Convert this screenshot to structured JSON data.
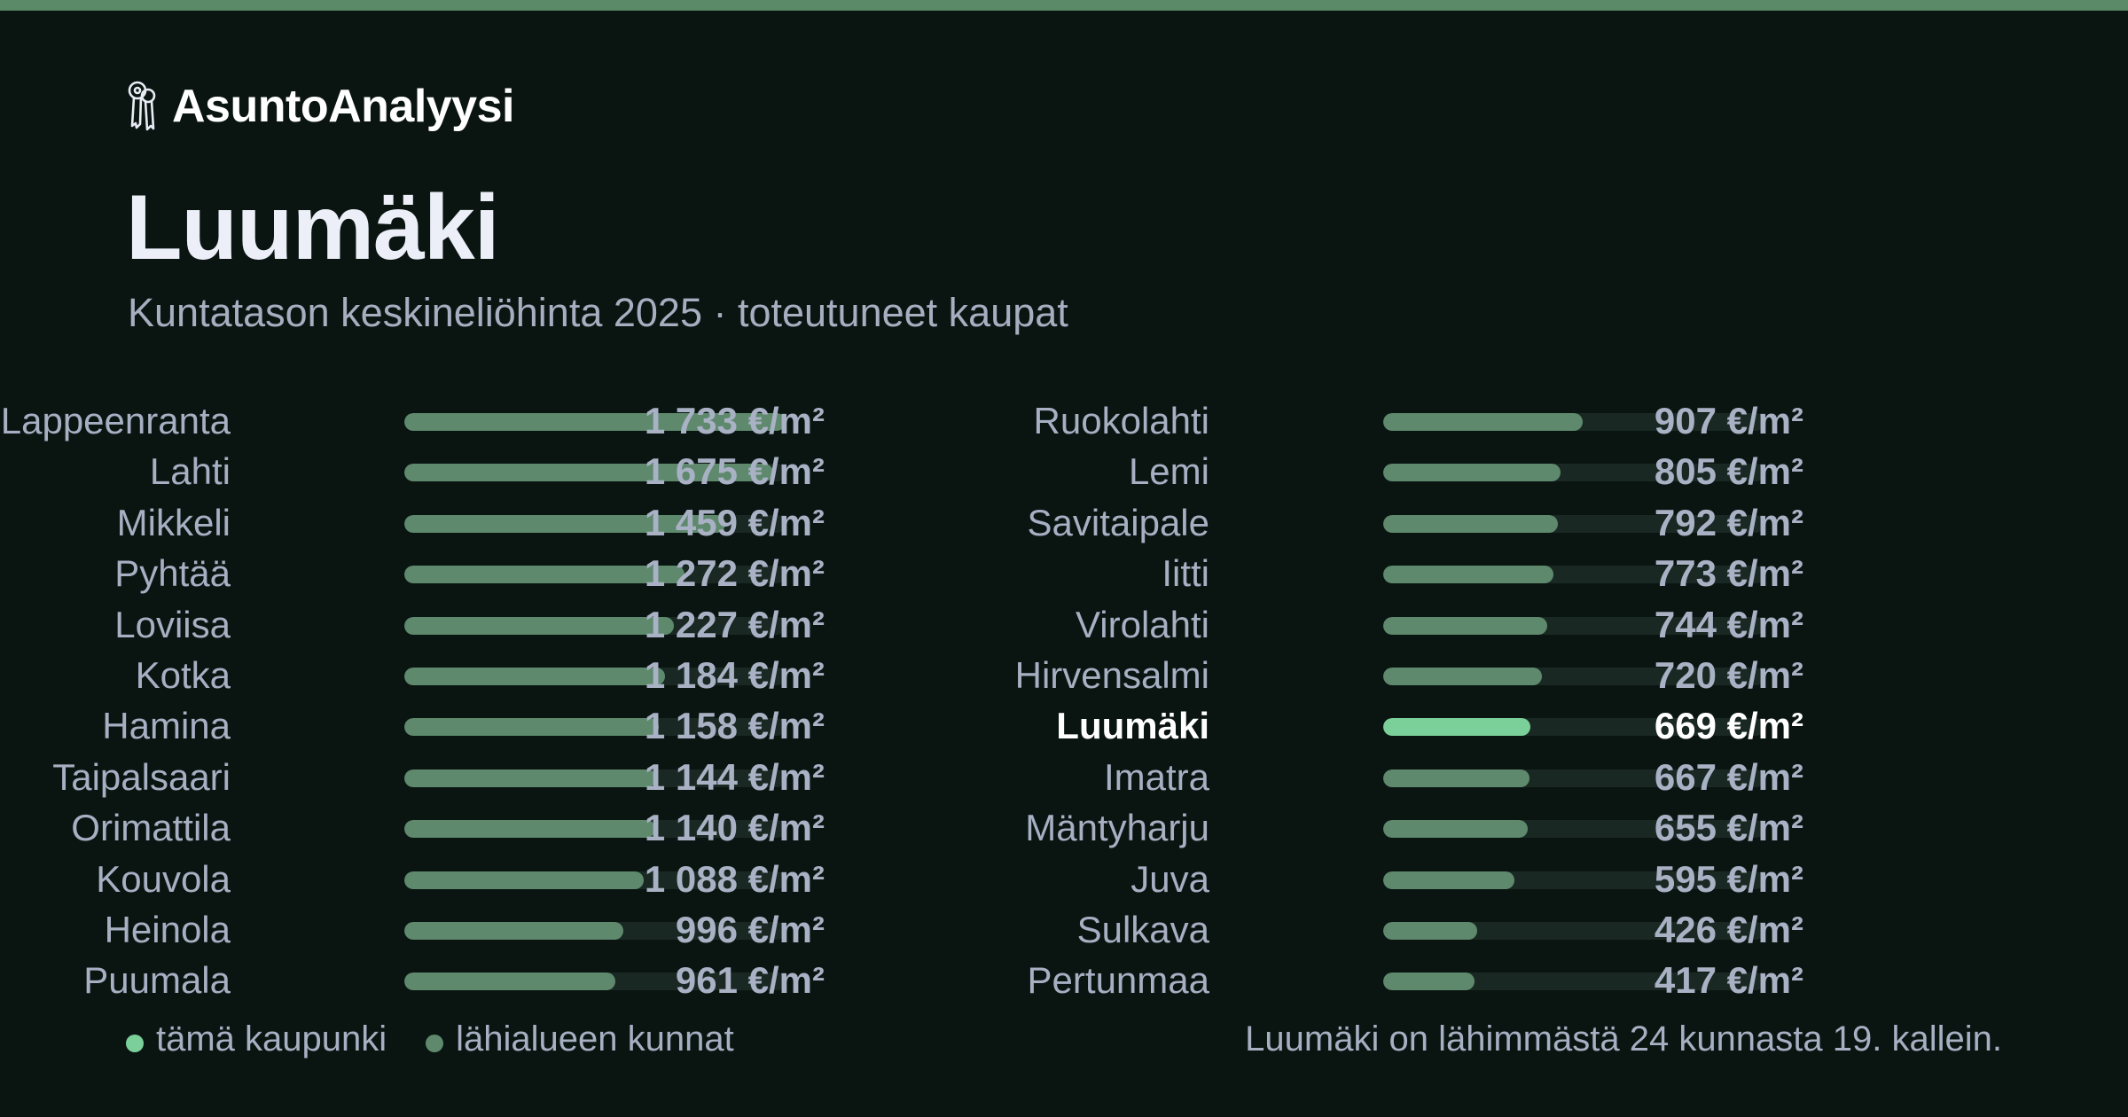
{
  "brand": {
    "name": "AsuntoAnalyysi",
    "icon": "keys-icon"
  },
  "title": "Luumäki",
  "subtitle": "Kuntatason keskineliöhinta 2025 · toteutuneet kaupat",
  "legend": {
    "this_city": "tämä kaupunki",
    "nearby": "lähialueen kunnat"
  },
  "footnote": "Luumäki on lähimmästä 24 kunnasta 19. kallein.",
  "colors": {
    "background": "#0a1512",
    "accent": "#5b8a68",
    "bar_default": "#5e896d",
    "bar_highlight": "#7bd09a",
    "track": "#1a2823"
  },
  "chart_data": {
    "type": "bar",
    "orientation": "horizontal",
    "unit": "€/m²",
    "xlim": [
      0,
      1733
    ],
    "highlight": "Luumäki",
    "legend_position": "bottom-left",
    "categories": [
      "Lappeenranta",
      "Lahti",
      "Mikkeli",
      "Pyhtää",
      "Loviisa",
      "Kotka",
      "Hamina",
      "Taipalsaari",
      "Orimattila",
      "Kouvola",
      "Heinola",
      "Puumala",
      "Ruokolahti",
      "Lemi",
      "Savitaipale",
      "Iitti",
      "Virolahti",
      "Hirvensalmi",
      "Luumäki",
      "Imatra",
      "Mäntyharju",
      "Juva",
      "Sulkava",
      "Pertunmaa"
    ],
    "values": [
      1733,
      1675,
      1459,
      1272,
      1227,
      1184,
      1158,
      1144,
      1140,
      1088,
      996,
      961,
      907,
      805,
      792,
      773,
      744,
      720,
      669,
      667,
      655,
      595,
      426,
      417
    ],
    "value_labels": [
      "1 733 €/m²",
      "1 675 €/m²",
      "1 459 €/m²",
      "1 272 €/m²",
      "1 227 €/m²",
      "1 184 €/m²",
      "1 158 €/m²",
      "1 144 €/m²",
      "1 140 €/m²",
      "1 088 €/m²",
      "996 €/m²",
      "961 €/m²",
      "907 €/m²",
      "805 €/m²",
      "792 €/m²",
      "773 €/m²",
      "744 €/m²",
      "720 €/m²",
      "669 €/m²",
      "667 €/m²",
      "655 €/m²",
      "595 €/m²",
      "426 €/m²",
      "417 €/m²"
    ]
  }
}
